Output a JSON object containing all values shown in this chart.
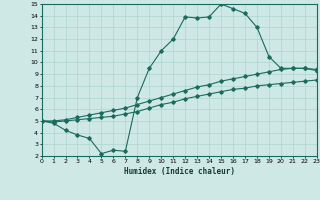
{
  "xlabel": "Humidex (Indice chaleur)",
  "xlim": [
    0,
    23
  ],
  "ylim": [
    2,
    15
  ],
  "yticks": [
    2,
    3,
    4,
    5,
    6,
    7,
    8,
    9,
    10,
    11,
    12,
    13,
    14,
    15
  ],
  "xticks": [
    0,
    1,
    2,
    3,
    4,
    5,
    6,
    7,
    8,
    9,
    10,
    11,
    12,
    13,
    14,
    15,
    16,
    17,
    18,
    19,
    20,
    21,
    22,
    23
  ],
  "bg_color": "#cde8e5",
  "line_color": "#1a6b5e",
  "grid_color": "#aed4cf",
  "line1_x": [
    0,
    1,
    2,
    3,
    4,
    5,
    6,
    7,
    8,
    9,
    10,
    11,
    12,
    13,
    14,
    15,
    16,
    17,
    18,
    19,
    20,
    21,
    22,
    23
  ],
  "line1_y": [
    5.0,
    4.8,
    4.2,
    3.8,
    3.5,
    2.2,
    2.5,
    2.4,
    7.0,
    9.5,
    11.0,
    12.0,
    13.9,
    13.8,
    13.9,
    15.0,
    14.6,
    14.2,
    13.0,
    10.5,
    9.5,
    9.5,
    9.5,
    9.3
  ],
  "line2_x": [
    0,
    1,
    2,
    3,
    4,
    5,
    6,
    7,
    8,
    9,
    10,
    11,
    12,
    13,
    14,
    15,
    16,
    17,
    18,
    19,
    20,
    21,
    22,
    23
  ],
  "line2_y": [
    5.0,
    5.0,
    5.1,
    5.3,
    5.5,
    5.7,
    5.9,
    6.1,
    6.4,
    6.7,
    7.0,
    7.3,
    7.6,
    7.9,
    8.1,
    8.4,
    8.6,
    8.8,
    9.0,
    9.2,
    9.4,
    9.5,
    9.5,
    9.4
  ],
  "line3_x": [
    0,
    1,
    2,
    3,
    4,
    5,
    6,
    7,
    8,
    9,
    10,
    11,
    12,
    13,
    14,
    15,
    16,
    17,
    18,
    19,
    20,
    21,
    22,
    23
  ],
  "line3_y": [
    5.0,
    4.9,
    5.0,
    5.1,
    5.2,
    5.3,
    5.4,
    5.6,
    5.8,
    6.1,
    6.4,
    6.6,
    6.9,
    7.1,
    7.3,
    7.5,
    7.7,
    7.8,
    8.0,
    8.1,
    8.2,
    8.3,
    8.4,
    8.5
  ]
}
